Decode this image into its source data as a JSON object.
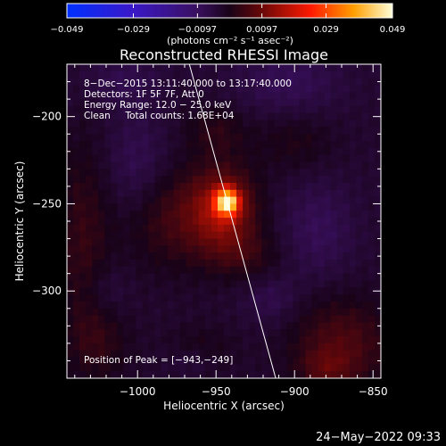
{
  "chart_data": {
    "type": "heatmap",
    "title": "Reconstructed RHESSI Image",
    "xlabel": "Heliocentric X (arcsec)",
    "ylabel": "Heliocentric Y (arcsec)",
    "xlim": [
      -1045,
      -845
    ],
    "ylim": [
      -350,
      -170
    ],
    "x_ticks": [
      -1000,
      -950,
      -900,
      -850
    ],
    "x_tick_labels": [
      "−1000",
      "−950",
      "−900",
      "−850"
    ],
    "y_ticks": [
      -200,
      -250,
      -300
    ],
    "y_tick_labels": [
      "−200",
      "−250",
      "−300"
    ],
    "colorbar": {
      "min": -0.049,
      "max": 0.049,
      "ticks": [
        -0.049,
        -0.029,
        -0.0097,
        0.0097,
        0.029,
        0.049
      ],
      "tick_labels": [
        "−0.049",
        "−0.029",
        "−0.0097",
        "0.0097",
        "0.029",
        "0.049"
      ],
      "unit_label": "(photons cm⁻² s⁻¹ asec⁻²)"
    },
    "annotations": [
      "8−Dec−2015 13:11:40.000 to 13:17:40.000",
      "Detectors: 1F 5F 7F, Att 0",
      "Energy Range: 12.0 − 25.0 keV",
      "Clean     Total counts: 1.68E+04"
    ],
    "peak_label": "Position of Peak = [−943,−249]",
    "peak": {
      "x": -943,
      "y": -249,
      "value": 0.049
    },
    "limb_line": [
      {
        "x": -967,
        "y": -170
      },
      {
        "x": -912,
        "y": -350
      }
    ],
    "sources": [
      {
        "x": -943,
        "y": -249,
        "sx": 5,
        "sy": 5,
        "amp": 0.04
      },
      {
        "x": -945,
        "y": -253,
        "sx": 14,
        "sy": 16,
        "amp": 0.016
      },
      {
        "x": -975,
        "y": -258,
        "sx": 24,
        "sy": 20,
        "amp": 0.008
      },
      {
        "x": -930,
        "y": -280,
        "sx": 16,
        "sy": 10,
        "amp": 0.005
      },
      {
        "x": -950,
        "y": -208,
        "sx": 14,
        "sy": 10,
        "amp": 0.005
      },
      {
        "x": -900,
        "y": -215,
        "sx": 18,
        "sy": 12,
        "amp": 0.004
      },
      {
        "x": -1035,
        "y": -270,
        "sx": 12,
        "sy": 40,
        "amp": 0.006
      },
      {
        "x": -1025,
        "y": -330,
        "sx": 14,
        "sy": 16,
        "amp": 0.005
      },
      {
        "x": -870,
        "y": -330,
        "sx": 22,
        "sy": 18,
        "amp": 0.009
      },
      {
        "x": -880,
        "y": -345,
        "sx": 12,
        "sy": 8,
        "amp": 0.006
      },
      {
        "x": -960,
        "y": -335,
        "sx": 16,
        "sy": 10,
        "amp": 0.004
      },
      {
        "x": -1000,
        "y": -230,
        "sx": 14,
        "sy": 22,
        "amp": -0.005
      },
      {
        "x": -905,
        "y": -180,
        "sx": 24,
        "sy": 14,
        "amp": -0.005
      },
      {
        "x": -1010,
        "y": -180,
        "sx": 18,
        "sy": 10,
        "amp": -0.004
      },
      {
        "x": -915,
        "y": -305,
        "sx": 12,
        "sy": 10,
        "amp": -0.004
      },
      {
        "x": -885,
        "y": -265,
        "sx": 16,
        "sy": 20,
        "amp": -0.005
      },
      {
        "x": -965,
        "y": -340,
        "sx": 12,
        "sy": 6,
        "amp": -0.004
      },
      {
        "x": -1020,
        "y": -300,
        "sx": 10,
        "sy": 10,
        "amp": -0.003
      }
    ],
    "grid_cells": [
      50,
      45
    ],
    "background": -0.003,
    "grid": false,
    "colors": {
      "background": "#000000",
      "text": "#ffffff",
      "limb": "#ffffff"
    }
  },
  "footer": {
    "date": "24−May−2022 09:33"
  }
}
